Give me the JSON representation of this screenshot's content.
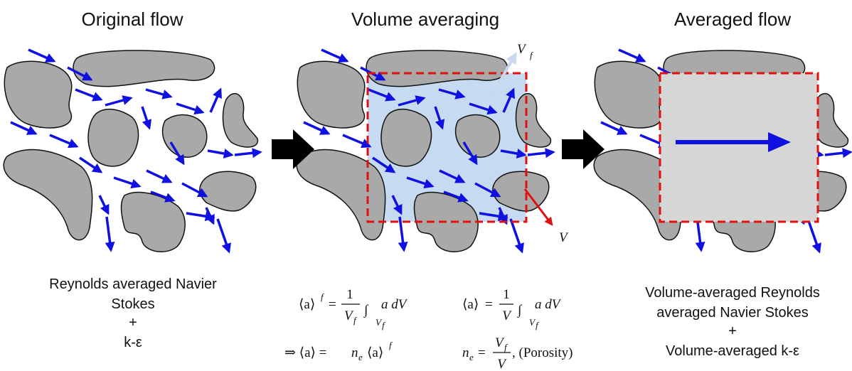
{
  "panels": [
    {
      "title": "Original flow",
      "caption": [
        "Reynolds averaged Navier",
        "Stokes",
        "+",
        "k-ε"
      ]
    },
    {
      "title": "Volume averaging",
      "labels": {
        "fluid_volume": "V",
        "fluid_volume_sub": "f",
        "volume": "V"
      },
      "equations": {
        "fluid_avg": {
          "lhs": "⟨a⟩",
          "lhs_sup": "f",
          "eq": "=",
          "num": "1",
          "den": "V",
          "den_sub": "f",
          "integral": "∫",
          "int_sub": "V",
          "int_sub_sub": "f",
          "integrand": "a dV"
        },
        "vol_avg": {
          "lhs": "⟨a⟩",
          "eq": "=",
          "num": "1",
          "den": "V",
          "integral": "∫",
          "int_sub": "V",
          "int_sub_sub": "f",
          "integrand": "a dV"
        },
        "relation": {
          "lhs": "⇒ ⟨a⟩ =",
          "mid": "n",
          "mid_sub": "e",
          "rest": "⟨a⟩",
          "rest_sup": "f"
        },
        "porosity": {
          "lhs": "n",
          "lhs_sub": "e",
          "eq": "=",
          "num": "V",
          "num_sub": "f",
          "den": "V",
          "note": ", (Porosity)"
        }
      }
    },
    {
      "title": "Averaged flow",
      "caption": [
        "Volume-averaged Reynolds",
        "averaged Navier Stokes",
        "+",
        "Volume-averaged k-ε"
      ]
    }
  ]
}
